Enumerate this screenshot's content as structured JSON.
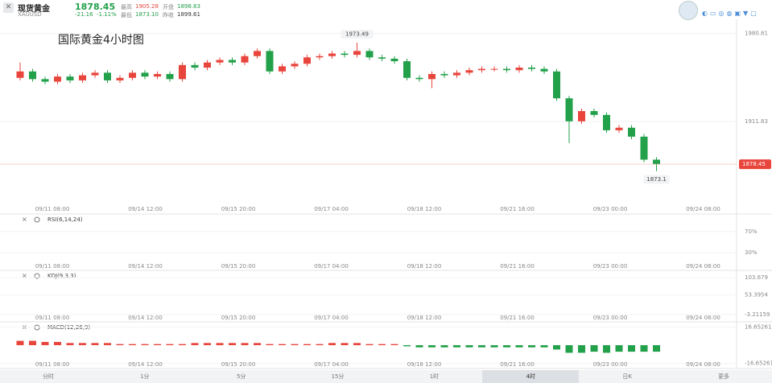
{
  "header": {
    "name": "现货黄金",
    "symbol": "XAUUSD",
    "price": 1878.45,
    "change": -21.16,
    "change_pct": "-1.11%",
    "stats": [
      {
        "label": "最高",
        "value": 1905.28
      },
      {
        "label": "开盘",
        "value": 1898.83
      },
      {
        "label": "最低",
        "value": {
          "value": 1873.1,
          "label": "1873.10"
        }
      },
      {
        "label": "昨收",
        "value": 1899.61
      }
    ]
  },
  "chart_data": {
    "type": "candlestick",
    "title": "国际黄金4小时图",
    "up_color": "#e8453c",
    "down_color": "#22a04a",
    "time_labels": [
      "09/11 08:00",
      "09/14 12:00",
      "09/15 20:00",
      "09/17 04:00",
      "09/18 12:00",
      "09/21 16:00",
      "09/23 00:00",
      "09/24 08:00"
    ],
    "open": [
      1946,
      1951,
      1945,
      1943,
      1947,
      1944,
      1948,
      1950,
      1944,
      1946,
      1950,
      1947,
      1949,
      1945,
      1956,
      1954,
      1958,
      1960,
      1958,
      1963,
      1967,
      1951,
      1955,
      1957,
      1962,
      1963,
      1965,
      1964,
      1967,
      1962,
      1961,
      1959,
      1946,
      1945,
      1949,
      1948,
      1950,
      1952,
      1953,
      1953,
      1952,
      1954,
      1953,
      1951,
      1930,
      1912,
      1920,
      1917,
      1905,
      1907,
      1900,
      1882
    ],
    "high": [
      1958,
      1953,
      1947,
      1949,
      1949,
      1950,
      1952,
      1952,
      1948,
      1952,
      1952,
      1951,
      1951,
      1958,
      1958,
      1960,
      1962,
      1962,
      1965,
      1969,
      1969,
      1957,
      1959,
      1964,
      1965,
      1967,
      1967,
      1973.49,
      1969,
      1964,
      1963,
      1961,
      1948,
      1951,
      1951,
      1952,
      1954,
      1955,
      1955,
      1955,
      1956,
      1956,
      1955,
      1953,
      1932,
      1922,
      1922,
      1919,
      1909,
      1909,
      1902,
      1884
    ],
    "low": [
      1944,
      1943,
      1941,
      1941,
      1942,
      1942,
      1946,
      1942,
      1942,
      1944,
      1945,
      1945,
      1943,
      1943,
      1952,
      1952,
      1956,
      1956,
      1956,
      1961,
      1949,
      1949,
      1953,
      1955,
      1960,
      1961,
      1962,
      1962,
      1960,
      1959,
      1957,
      1944,
      1943,
      1938,
      1946,
      1946,
      1948,
      1950,
      1951,
      1950,
      1950,
      1951,
      1949,
      1928,
      1895,
      1910,
      1915,
      1903,
      1903,
      1898,
      1880,
      1873.1
    ],
    "close": [
      1951,
      1945,
      1943,
      1947,
      1944,
      1948,
      1950,
      1944,
      1946,
      1950,
      1947,
      1949,
      1945,
      1956,
      1954,
      1958,
      1960,
      1958,
      1963,
      1967,
      1951,
      1955,
      1957,
      1962,
      1963,
      1965,
      1964,
      1967,
      1962,
      1961,
      1959,
      1946,
      1945,
      1949,
      1948,
      1950,
      1952,
      1953,
      1953,
      1952,
      1954,
      1953,
      1951,
      1930,
      1912,
      1920,
      1917,
      1905,
      1907,
      1900,
      1882,
      1878.45
    ],
    "ylim": [
      1842,
      1988
    ],
    "yticks": [
      1980.81,
      1911.83
    ],
    "indicators": [
      {
        "name": "RSI(6,14,24)",
        "ylim": [
          0,
          100
        ],
        "yticks": [
          {
            "value": 70,
            "label": "70%"
          },
          {
            "value": 30,
            "label": "30%"
          }
        ]
      },
      {
        "name": "KDJ(9,3,3)",
        "ylim": [
          -20,
          120
        ],
        "yticks": [
          103.679,
          53.3954,
          -3.21159
        ]
      },
      {
        "name": "MACD(12,26,9)",
        "ylim": [
          -20,
          20
        ],
        "yticks": [
          16.65261,
          -16.65261
        ],
        "values": [
          4,
          4,
          3,
          3,
          2,
          2,
          2,
          2,
          1,
          1,
          1,
          1,
          1,
          1,
          2,
          2,
          2,
          2,
          2,
          2,
          1,
          1,
          1,
          1,
          1,
          2,
          2,
          2,
          1,
          1,
          1,
          -1,
          -2,
          -2,
          -2,
          -2,
          -2,
          -2,
          -2,
          -2,
          -2,
          -2,
          -2,
          -4,
          -7,
          -7,
          -6,
          -7,
          -6,
          -6,
          -6,
          -6
        ]
      }
    ]
  },
  "tabs": [
    "分时",
    "1分",
    "5分",
    "15分",
    "1时",
    "4时",
    "日K",
    "更多"
  ],
  "active_tab": 5
}
